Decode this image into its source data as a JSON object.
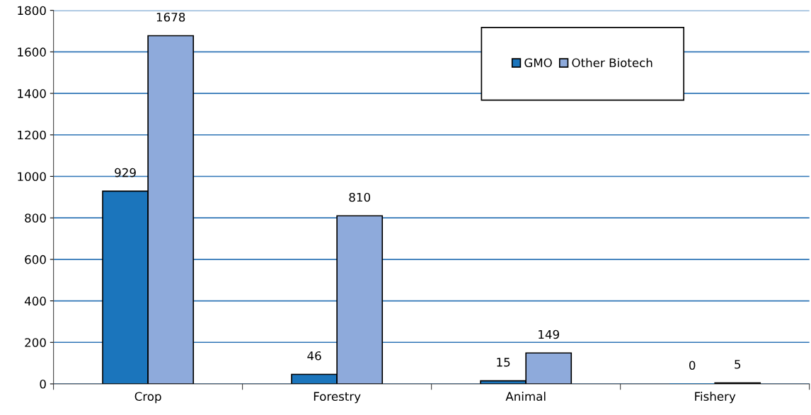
{
  "chart_data": {
    "type": "bar",
    "categories": [
      "Crop",
      "Forestry",
      "Animal",
      "Fishery"
    ],
    "series": [
      {
        "name": "GMO",
        "color": "#1b75bc",
        "values": [
          929,
          46,
          15,
          0
        ]
      },
      {
        "name": "Other Biotech",
        "color": "#8eaadb",
        "values": [
          1678,
          810,
          149,
          5
        ]
      }
    ],
    "ylim": [
      0,
      1800
    ],
    "yticks": [
      0,
      200,
      400,
      600,
      800,
      1000,
      1200,
      1400,
      1600,
      1800
    ],
    "grid": "y",
    "legend": "top right",
    "data_labels": true
  }
}
